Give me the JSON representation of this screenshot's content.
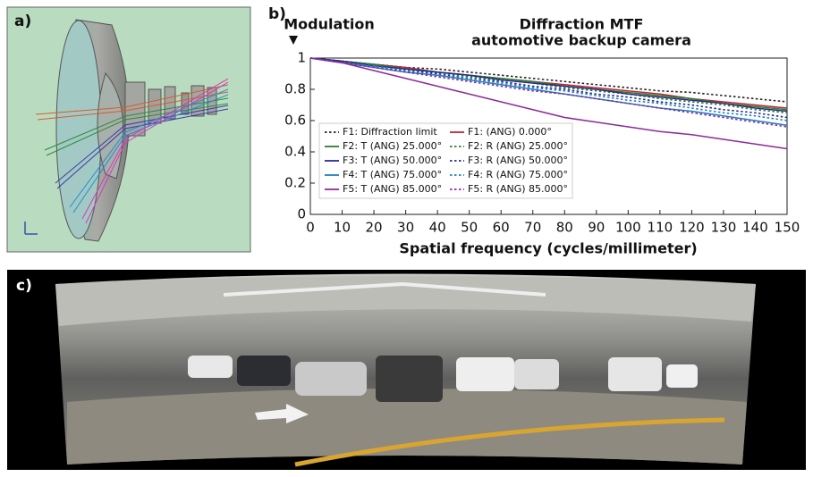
{
  "panels": {
    "a": "a)",
    "b": "b)",
    "c": "c)"
  },
  "chart_data": {
    "type": "line",
    "title": "Diffraction MTF",
    "subtitle": "automotive backup camera",
    "ylabel": "Modulation",
    "xlabel": "Spatial frequency (cycles/millimeter)",
    "x": [
      0,
      10,
      20,
      30,
      40,
      50,
      60,
      70,
      80,
      90,
      100,
      110,
      120,
      130,
      140,
      150
    ],
    "xlim": [
      0,
      150
    ],
    "ylim": [
      0,
      1
    ],
    "xticks": [
      0,
      10,
      20,
      30,
      40,
      50,
      60,
      70,
      80,
      90,
      100,
      110,
      120,
      130,
      140,
      150
    ],
    "yticks": [
      0,
      0.2,
      0.4,
      0.6,
      0.8,
      1
    ],
    "legend": "lower left",
    "series": [
      {
        "name": "F1: Diffraction limit",
        "color": "#222222",
        "style": "dotted",
        "values": [
          1,
          0.98,
          0.96,
          0.94,
          0.93,
          0.91,
          0.89,
          0.87,
          0.85,
          0.83,
          0.81,
          0.79,
          0.78,
          0.76,
          0.74,
          0.72
        ]
      },
      {
        "name": "F1: (ANG) 0.000°",
        "color": "#c0282d",
        "style": "solid",
        "values": [
          1,
          0.98,
          0.96,
          0.94,
          0.91,
          0.89,
          0.87,
          0.85,
          0.83,
          0.81,
          0.79,
          0.77,
          0.74,
          0.72,
          0.7,
          0.68
        ]
      },
      {
        "name": "F2: T (ANG) 25.000°",
        "color": "#2e7d32",
        "style": "solid",
        "values": [
          1,
          0.98,
          0.96,
          0.93,
          0.91,
          0.89,
          0.87,
          0.85,
          0.82,
          0.8,
          0.78,
          0.76,
          0.74,
          0.71,
          0.69,
          0.67
        ]
      },
      {
        "name": "F2: R (ANG) 25.000°",
        "color": "#2e7d32",
        "style": "dotted",
        "values": [
          1,
          0.98,
          0.95,
          0.93,
          0.91,
          0.88,
          0.86,
          0.84,
          0.81,
          0.79,
          0.77,
          0.74,
          0.72,
          0.7,
          0.67,
          0.65
        ]
      },
      {
        "name": "F3: T (ANG) 50.000°",
        "color": "#2a2a8c",
        "style": "solid",
        "values": [
          1,
          0.98,
          0.95,
          0.93,
          0.91,
          0.89,
          0.86,
          0.84,
          0.82,
          0.8,
          0.77,
          0.75,
          0.73,
          0.71,
          0.68,
          0.66
        ]
      },
      {
        "name": "F3: R (ANG) 50.000°",
        "color": "#2a2a8c",
        "style": "dotted",
        "values": [
          1,
          0.97,
          0.95,
          0.92,
          0.9,
          0.87,
          0.85,
          0.82,
          0.8,
          0.77,
          0.75,
          0.72,
          0.7,
          0.67,
          0.65,
          0.62
        ]
      },
      {
        "name": "F4: T (ANG) 75.000°",
        "color": "#1f7fc0",
        "style": "solid",
        "values": [
          1,
          0.97,
          0.94,
          0.91,
          0.89,
          0.86,
          0.83,
          0.8,
          0.77,
          0.74,
          0.71,
          0.68,
          0.66,
          0.63,
          0.6,
          0.57
        ]
      },
      {
        "name": "F4: R (ANG) 75.000°",
        "color": "#1f7fc0",
        "style": "dotted",
        "values": [
          1,
          0.97,
          0.95,
          0.92,
          0.89,
          0.87,
          0.84,
          0.81,
          0.79,
          0.76,
          0.73,
          0.71,
          0.68,
          0.65,
          0.63,
          0.6
        ]
      },
      {
        "name": "F5: T (ANG) 85.000°",
        "color": "#8e2a9a",
        "style": "solid",
        "values": [
          1,
          0.97,
          0.92,
          0.87,
          0.82,
          0.77,
          0.72,
          0.67,
          0.62,
          0.59,
          0.56,
          0.53,
          0.51,
          0.48,
          0.45,
          0.42
        ]
      },
      {
        "name": "F5: R (ANG) 85.000°",
        "color": "#8e2a9a",
        "style": "dotted",
        "values": [
          1,
          0.97,
          0.94,
          0.91,
          0.88,
          0.85,
          0.82,
          0.79,
          0.77,
          0.74,
          0.71,
          0.68,
          0.65,
          0.62,
          0.59,
          0.56
        ]
      }
    ]
  }
}
